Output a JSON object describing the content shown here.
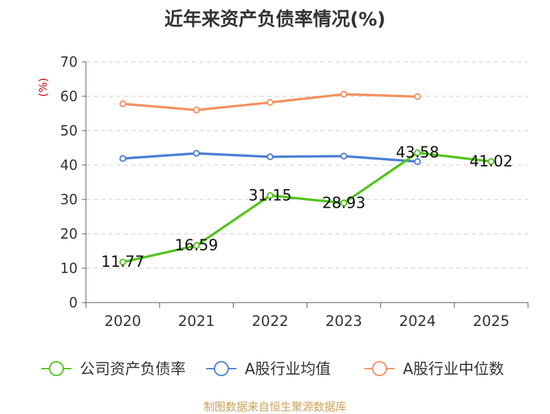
{
  "chart_data": {
    "type": "line",
    "title": "近年来资产负债率情况(%)",
    "ylabel": "(%)",
    "xlabel": "",
    "categories": [
      "2020",
      "2021",
      "2022",
      "2023",
      "2024",
      "2025"
    ],
    "ylim": [
      0,
      70
    ],
    "yticks": [
      "0",
      "10",
      "20",
      "30",
      "40",
      "50",
      "60",
      "70"
    ],
    "grid": true,
    "legend_position": "bottom",
    "series": [
      {
        "name": "公司资产负债率",
        "color": "#52c41a",
        "values": [
          11.77,
          16.59,
          31.15,
          28.93,
          43.58,
          41.02
        ],
        "labels": [
          "11.77",
          "16.59",
          "31.15",
          "28.93",
          "43.58",
          "41.02"
        ]
      },
      {
        "name": "A股行业均值",
        "color": "#4a7fd6",
        "values": [
          41.9,
          43.4,
          42.4,
          42.6,
          41.0,
          null
        ],
        "labels": []
      },
      {
        "name": "A股行业中位数",
        "color": "#f59060",
        "values": [
          57.8,
          56.0,
          58.2,
          60.6,
          59.9,
          null
        ],
        "labels": []
      }
    ],
    "source": "制图数据来自恒生聚源数据库"
  }
}
